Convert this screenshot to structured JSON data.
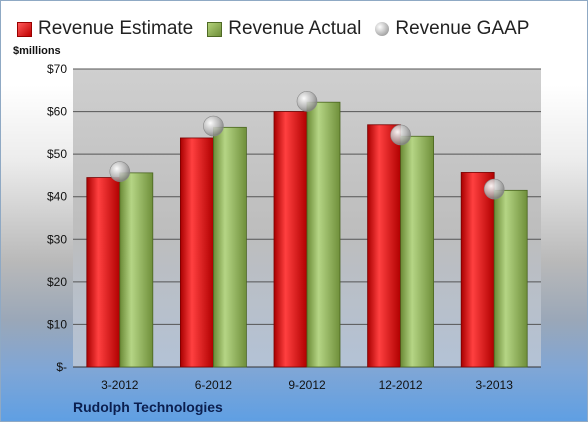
{
  "legend": {
    "estimate": "Revenue Estimate",
    "actual": "Revenue Actual",
    "gaap": "Revenue GAAP"
  },
  "unit_label": "$millions",
  "company": "Rudolph Technologies",
  "colors": {
    "estimate": "#d91c1c",
    "actual": "#8db35a",
    "gaap": "#b0b0b0"
  },
  "chart_data": {
    "type": "bar",
    "categories": [
      "3-2012",
      "6-2012",
      "9-2012",
      "12-2012",
      "3-2013"
    ],
    "series": [
      {
        "name": "Revenue Estimate",
        "values": [
          44.5,
          53.8,
          60.0,
          56.9,
          45.7
        ]
      },
      {
        "name": "Revenue Actual",
        "values": [
          45.6,
          56.3,
          62.2,
          54.2,
          41.5
        ]
      },
      {
        "name": "Revenue GAAP",
        "values": [
          45.9,
          56.6,
          62.4,
          54.5,
          41.8
        ]
      }
    ],
    "ylabel": "$millions",
    "ylim": [
      0,
      70
    ],
    "yticks": [
      0,
      10,
      20,
      30,
      40,
      50,
      60,
      70
    ],
    "ytick_labels": [
      "$-",
      "$10",
      "$20",
      "$30",
      "$40",
      "$50",
      "$60",
      "$70"
    ],
    "grid": true,
    "legend_position": "top"
  }
}
